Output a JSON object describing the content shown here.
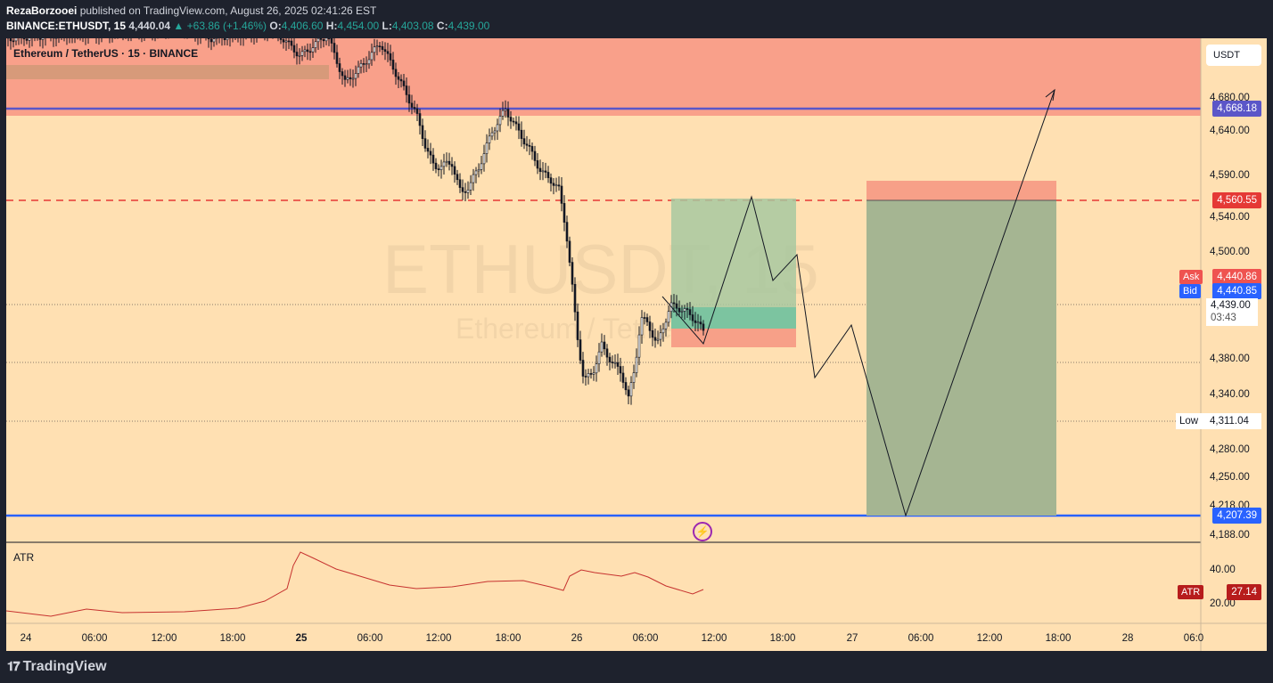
{
  "header": {
    "author": "RezaBorzooei",
    "published_text": "published on TradingView.com, August 26, 2025 02:41:26 EST",
    "symbol": "BINANCE:ETHUSDT, 15",
    "last": "4,440.04",
    "change": "▲ +63.86 (+1.46%)",
    "o_label": "O:",
    "o": "4,406.60",
    "h_label": "H:",
    "h": "4,454.00",
    "l_label": "L:",
    "l": "4,403.08",
    "c_label": "C:",
    "c": "4,439.00"
  },
  "chart": {
    "title": "Ethereum / TetherUS · 15 · BINANCE",
    "watermark_main": "ETHUSDT, 15",
    "watermark_sub": "Ethereum / TetherUS",
    "currency_button": "USDT",
    "price_axis": [
      "4,680.00",
      "4,640.00",
      "4,590.00",
      "4,540.00",
      "4,500.00",
      "4,380.00",
      "4,340.00",
      "4,280.00",
      "4,250.00",
      "4,218.00",
      "4,188.00"
    ],
    "levels": {
      "resistance": "4,668.18",
      "dashed": "4,560.55",
      "support": "4,207.39"
    },
    "ask": {
      "label": "Ask",
      "value": "4,440.86"
    },
    "bid": {
      "label": "Bid",
      "value": "4,440.85"
    },
    "last_price": "4,439.00",
    "countdown": "03:43",
    "low": {
      "label": "Low",
      "value": "4,311.04"
    },
    "time_axis": [
      "24",
      "06:00",
      "12:00",
      "18:00",
      "25",
      "06:00",
      "12:00",
      "18:00",
      "26",
      "06:00",
      "12:00",
      "18:00",
      "27",
      "06:00",
      "12:00",
      "18:00",
      "28",
      "06:0"
    ],
    "colors": {
      "background": "#ffe0b2",
      "supply_zone": "#f9a08a",
      "resistance_line": "#5b56c8",
      "support_line": "#2962ff",
      "dashed_line": "#e53935",
      "target_box": "#a5b592",
      "stop_box": "#f7a088"
    }
  },
  "indicator": {
    "name": "ATR",
    "axis": [
      "40.00",
      "20.00"
    ],
    "value_label": "ATR",
    "value": "27.14"
  },
  "footer": {
    "logo": "TradingView"
  }
}
